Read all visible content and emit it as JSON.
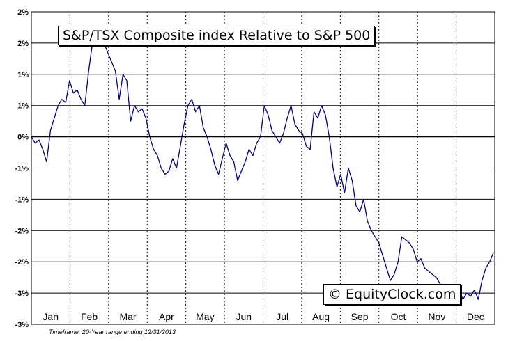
{
  "chart_data": {
    "type": "line",
    "title": "S&P/TSX Composite index Relative to S&P 500",
    "xlabel": "",
    "ylabel": "",
    "x_tick_labels": [
      "Jan",
      "Feb",
      "Mar",
      "Apr",
      "May",
      "Jun",
      "Jul",
      "Aug",
      "Sep",
      "Oct",
      "Nov",
      "Dec"
    ],
    "y_tick_labels": [
      "2%",
      "2%",
      "1%",
      "1%",
      "0%",
      "-1%",
      "-1%",
      "-2%",
      "-2%",
      "-3%",
      "-3%"
    ],
    "ylim": [
      -3.0,
      2.0
    ],
    "xlim": [
      1,
      365
    ],
    "grid": true,
    "line_color": "#000080",
    "series": [
      {
        "name": "",
        "x": [
          1,
          4,
          7,
          10,
          13,
          16,
          19,
          22,
          25,
          28,
          31,
          34,
          37,
          40,
          43,
          46,
          49,
          52,
          55,
          58,
          61,
          64,
          67,
          70,
          73,
          76,
          79,
          82,
          85,
          88,
          91,
          94,
          97,
          100,
          103,
          106,
          109,
          112,
          115,
          118,
          121,
          124,
          127,
          130,
          133,
          136,
          139,
          142,
          145,
          148,
          151,
          154,
          157,
          160,
          163,
          166,
          169,
          172,
          175,
          178,
          181,
          184,
          187,
          190,
          193,
          196,
          199,
          202,
          205,
          208,
          211,
          214,
          217,
          220,
          223,
          226,
          229,
          232,
          235,
          238,
          241,
          244,
          247,
          250,
          253,
          256,
          259,
          262,
          265,
          268,
          271,
          274,
          277,
          280,
          283,
          286,
          289,
          292,
          295,
          298,
          301,
          304,
          307,
          310,
          313,
          316,
          319,
          322,
          325,
          328,
          331,
          334,
          337,
          340,
          343,
          346,
          349,
          352,
          355,
          358,
          361,
          364
        ],
        "values": [
          0.0,
          -0.1,
          -0.05,
          -0.2,
          -0.4,
          0.1,
          0.3,
          0.5,
          0.6,
          0.55,
          0.9,
          0.7,
          0.75,
          0.6,
          0.5,
          1.05,
          1.5,
          1.65,
          1.6,
          1.5,
          1.35,
          1.2,
          1.05,
          0.6,
          1.0,
          0.9,
          0.25,
          0.5,
          0.4,
          0.45,
          0.3,
          0.0,
          -0.2,
          -0.3,
          -0.5,
          -0.6,
          -0.55,
          -0.35,
          -0.5,
          -0.15,
          0.2,
          0.5,
          0.6,
          0.4,
          0.5,
          0.15,
          0.0,
          -0.2,
          -0.45,
          -0.6,
          -0.35,
          -0.1,
          -0.3,
          -0.4,
          -0.7,
          -0.55,
          -0.4,
          -0.2,
          -0.3,
          -0.1,
          0.0,
          0.5,
          0.35,
          0.1,
          0.0,
          -0.1,
          0.05,
          0.3,
          0.5,
          0.2,
          0.1,
          0.05,
          -0.15,
          -0.2,
          0.4,
          0.3,
          0.5,
          0.35,
          0.0,
          -0.5,
          -0.8,
          -0.6,
          -0.9,
          -0.5,
          -0.7,
          -1.1,
          -1.2,
          -1.0,
          -1.35,
          -1.5,
          -1.6,
          -1.7,
          -1.9,
          -2.1,
          -2.3,
          -2.2,
          -2.0,
          -1.6,
          -1.65,
          -1.7,
          -1.8,
          -2.0,
          -1.95,
          -2.1,
          -2.15,
          -2.2,
          -2.25,
          -2.35,
          -2.4,
          -2.6,
          -2.55,
          -2.55,
          -2.45,
          -2.6,
          -2.5,
          -2.55,
          -2.45,
          -2.6,
          -2.3,
          -2.1,
          -2.0,
          -1.85
        ]
      }
    ]
  },
  "overlay": {
    "title_label": "S&P/TSX Composite index Relative to S&P 500",
    "brand_label": "© EquityClock.com",
    "footer_label": "Timeframe: 20-Year range ending 12/31/2013"
  }
}
